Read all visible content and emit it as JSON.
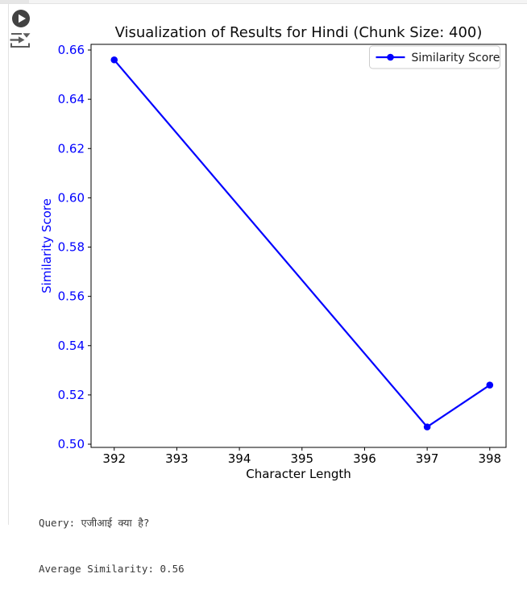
{
  "cell": {
    "icons": {
      "run": "play-circle-icon",
      "output": "scroll-to-output-icon"
    }
  },
  "chart_data": {
    "type": "line",
    "title": "Visualization of Results for Hindi (Chunk Size: 400)",
    "xlabel": "Character Length",
    "ylabel": "Similarity Score",
    "series": [
      {
        "name": "Similarity Score",
        "x": [
          392,
          397,
          398
        ],
        "y": [
          0.656,
          0.507,
          0.524
        ]
      }
    ],
    "xticks": [
      392,
      393,
      394,
      395,
      396,
      397,
      398
    ],
    "yticks": [
      0.5,
      0.52,
      0.54,
      0.56,
      0.58,
      0.6,
      0.62,
      0.64,
      0.66
    ],
    "xlim": [
      391.63,
      398.26
    ],
    "ylim": [
      0.4987,
      0.6623
    ],
    "grid": false,
    "legend": {
      "position": "upper right",
      "entries": [
        "Similarity Score"
      ]
    },
    "colors": {
      "line": "#0000ff",
      "marker": "#0000ff",
      "ytick_label": "#0000ff",
      "ylabel": "#0000ff",
      "xtick_label": "#000000",
      "title": "#0d0d0d",
      "spine": "#000000",
      "legend_border": "#cccccc",
      "legend_text": "#1a1a1a"
    }
  },
  "output": {
    "query_line": "Query: एजीआई क्या है?",
    "avg_line": "Average Similarity: 0.56"
  },
  "ui_colors": {
    "run_button_bg": "#424242",
    "icon_gray": "#5c5c5c",
    "cell_border": "#e3e3e3"
  }
}
